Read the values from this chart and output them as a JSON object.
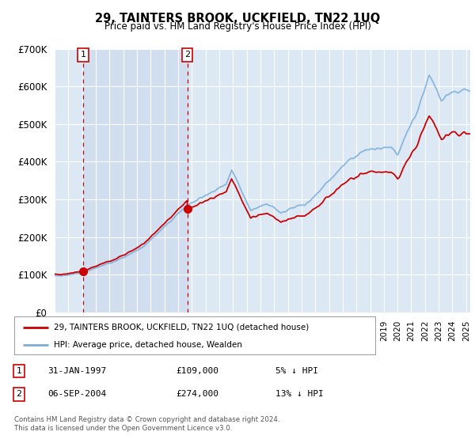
{
  "title": "29, TAINTERS BROOK, UCKFIELD, TN22 1UQ",
  "subtitle": "Price paid vs. HM Land Registry's House Price Index (HPI)",
  "legend_line1": "29, TAINTERS BROOK, UCKFIELD, TN22 1UQ (detached house)",
  "legend_line2": "HPI: Average price, detached house, Wealden",
  "footnote": "Contains HM Land Registry data © Crown copyright and database right 2024.\nThis data is licensed under the Open Government Licence v3.0.",
  "sale1_date": "31-JAN-1997",
  "sale1_price": "£109,000",
  "sale1_hpi": "5% ↓ HPI",
  "sale2_date": "06-SEP-2004",
  "sale2_price": "£274,000",
  "sale2_hpi": "13% ↓ HPI",
  "ylim": [
    0,
    700000
  ],
  "yticks": [
    0,
    100000,
    200000,
    300000,
    400000,
    500000,
    600000,
    700000
  ],
  "ytick_labels": [
    "£0",
    "£100K",
    "£200K",
    "£300K",
    "£400K",
    "£500K",
    "£600K",
    "£700K"
  ],
  "plot_bg_color": "#dce9f5",
  "shade_color": "#c8d8ee",
  "hpi_color": "#7aaddb",
  "sale_color": "#cc0000",
  "grid_color": "#ffffff",
  "sale1_x": 1997.08,
  "sale1_y": 109000,
  "sale2_x": 2004.67,
  "sale2_y": 274000,
  "xlim_left": 1995.0,
  "xlim_right": 2025.3
}
